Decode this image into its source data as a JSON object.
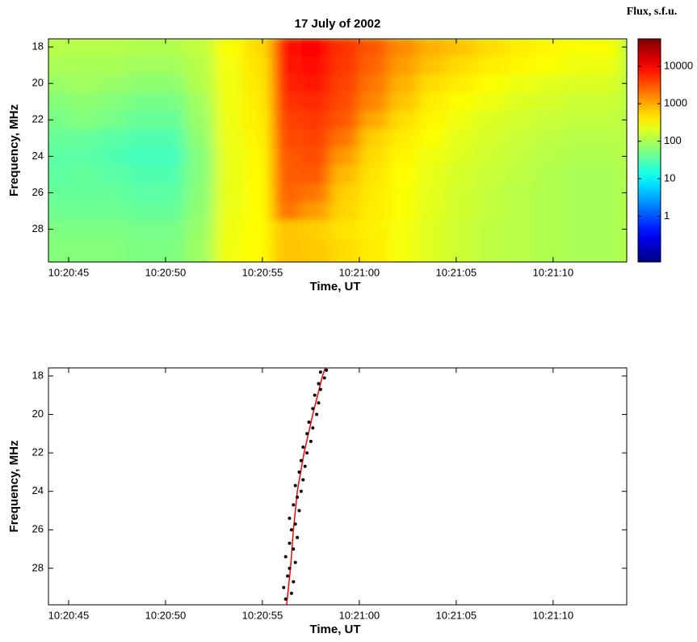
{
  "chart_data": [
    {
      "type": "heatmap",
      "title": "17 July of 2002",
      "xlabel": "Time, UT",
      "ylabel": "Frequency, MHz",
      "xlim": [
        43.96,
        73.8
      ],
      "ylim": [
        29.8,
        17.55
      ],
      "xticks": [
        {
          "value": 45,
          "label": "10:20:45"
        },
        {
          "value": 50,
          "label": "10:20:50"
        },
        {
          "value": 55,
          "label": "10:20:55"
        },
        {
          "value": 60,
          "label": "10:21:00"
        },
        {
          "value": 65,
          "label": "10:21:05"
        },
        {
          "value": 70,
          "label": "10:21:10"
        }
      ],
      "yticks": [
        18,
        20,
        22,
        24,
        26,
        28
      ],
      "xbins": [
        43.5,
        45,
        46.5,
        48,
        49.5,
        51,
        52.5,
        54,
        55.5,
        57,
        58.5,
        60,
        61.5,
        63,
        64.5,
        66,
        67.5,
        69,
        70.5,
        72,
        73.5
      ],
      "ybins": [
        17.5,
        18.5,
        19.5,
        20.5,
        21.5,
        22.5,
        23.5,
        24.5,
        25.5,
        26.5,
        27.5,
        28.5,
        29.5,
        30.5
      ],
      "values": [
        [
          120,
          120,
          120,
          110,
          110,
          140,
          300,
          500,
          8000,
          9000,
          5000,
          3000,
          1500,
          900,
          700,
          500,
          400,
          350,
          300,
          300
        ],
        [
          100,
          100,
          100,
          90,
          90,
          120,
          280,
          450,
          7000,
          8000,
          4500,
          2500,
          1200,
          700,
          500,
          400,
          350,
          300,
          250,
          250
        ],
        [
          80,
          90,
          80,
          70,
          70,
          110,
          270,
          420,
          6000,
          7000,
          4000,
          2000,
          900,
          500,
          400,
          300,
          250,
          220,
          200,
          200
        ],
        [
          60,
          70,
          60,
          50,
          50,
          90,
          260,
          400,
          5000,
          5500,
          3500,
          1600,
          700,
          400,
          300,
          250,
          200,
          180,
          160,
          160
        ],
        [
          50,
          60,
          50,
          40,
          40,
          80,
          250,
          380,
          4000,
          4500,
          3000,
          1000,
          500,
          350,
          250,
          200,
          170,
          150,
          140,
          140
        ],
        [
          40,
          40,
          35,
          30,
          30,
          70,
          240,
          360,
          3500,
          4000,
          2000,
          600,
          400,
          300,
          220,
          180,
          150,
          130,
          120,
          120
        ],
        [
          35,
          35,
          30,
          25,
          25,
          60,
          230,
          340,
          3000,
          3500,
          1200,
          500,
          350,
          250,
          200,
          160,
          140,
          120,
          110,
          110
        ],
        [
          35,
          40,
          35,
          30,
          30,
          60,
          230,
          330,
          2800,
          3000,
          800,
          450,
          320,
          230,
          180,
          150,
          130,
          110,
          100,
          100
        ],
        [
          40,
          40,
          40,
          35,
          35,
          65,
          230,
          320,
          2500,
          2000,
          600,
          420,
          300,
          220,
          170,
          140,
          120,
          110,
          100,
          100
        ],
        [
          45,
          45,
          45,
          40,
          40,
          70,
          240,
          320,
          2000,
          1200,
          550,
          400,
          300,
          210,
          170,
          140,
          120,
          110,
          100,
          100
        ],
        [
          55,
          55,
          55,
          50,
          50,
          80,
          250,
          320,
          700,
          600,
          450,
          380,
          280,
          200,
          160,
          130,
          120,
          110,
          100,
          100
        ],
        [
          60,
          60,
          60,
          55,
          55,
          85,
          260,
          330,
          700,
          650,
          500,
          400,
          280,
          200,
          160,
          130,
          120,
          110,
          100,
          100
        ],
        [
          60,
          60,
          60,
          55,
          55,
          85,
          260,
          330,
          700,
          650,
          500,
          400,
          280,
          200,
          160,
          130,
          120,
          110,
          100,
          100
        ]
      ],
      "colormap": "jet",
      "log_color": true,
      "colorbar": {
        "title": "Flux, s.f.u.",
        "lim": [
          0.06,
          54000
        ],
        "ticks": [
          1,
          10,
          100,
          1000,
          10000
        ]
      }
    },
    {
      "type": "scatter",
      "xlabel": "Time, UT",
      "ylabel": "Frequency, MHz",
      "xlim": [
        43.96,
        73.8
      ],
      "ylim": [
        29.9,
        17.58
      ],
      "xticks": [
        {
          "value": 45,
          "label": "10:20:45"
        },
        {
          "value": 50,
          "label": "10:20:50"
        },
        {
          "value": 55,
          "label": "10:20:55"
        },
        {
          "value": 60,
          "label": "10:21:00"
        },
        {
          "value": 65,
          "label": "10:21:05"
        },
        {
          "value": 70,
          "label": "10:21:10"
        }
      ],
      "yticks": [
        18,
        20,
        22,
        24,
        26,
        28
      ],
      "color": "#000000",
      "x": [
        56.2,
        56.5,
        56.1,
        56.6,
        56.3,
        56.4,
        56.7,
        56.2,
        56.6,
        56.4,
        56.8,
        56.5,
        56.7,
        56.4,
        56.9,
        56.6,
        56.8,
        57.0,
        56.7,
        57.1,
        56.9,
        57.2,
        57.0,
        57.3,
        57.1,
        57.5,
        57.3,
        57.6,
        57.4,
        57.8,
        57.6,
        57.9,
        57.7,
        58.0,
        57.9,
        58.2,
        58.0,
        58.3
      ],
      "y": [
        29.6,
        29.3,
        29.0,
        28.7,
        28.4,
        28.0,
        27.7,
        27.4,
        27.0,
        26.7,
        26.4,
        26.0,
        25.7,
        25.4,
        25.0,
        24.7,
        24.3,
        24.0,
        23.7,
        23.4,
        23.0,
        22.7,
        22.4,
        22.0,
        21.7,
        21.4,
        21.0,
        20.7,
        20.4,
        20.0,
        19.7,
        19.4,
        19.0,
        18.7,
        18.4,
        18.1,
        17.8,
        17.7
      ],
      "fit": {
        "color": "#ff0000",
        "x": [
          56.25,
          56.45,
          56.6,
          56.8,
          57.15,
          57.6,
          58.1,
          58.25
        ],
        "y": [
          29.9,
          28,
          26,
          24,
          22,
          20,
          18,
          17.58
        ]
      }
    }
  ]
}
